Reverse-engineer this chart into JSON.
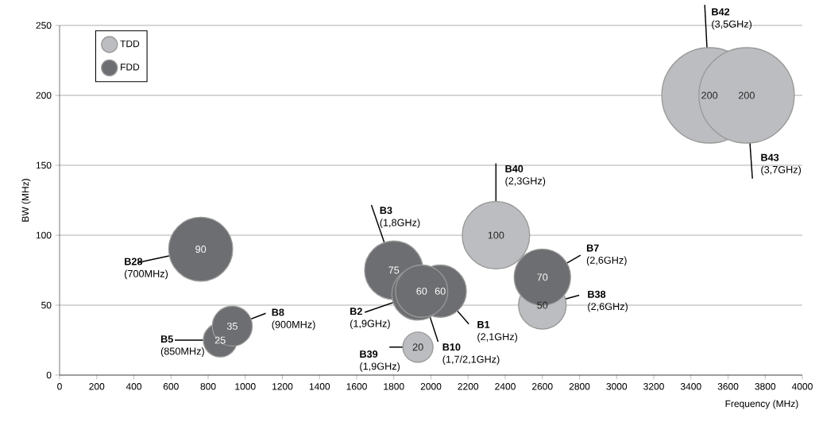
{
  "chart_data": {
    "type": "bubble",
    "xlabel": "Frequency (MHz)",
    "ylabel": "BW (MHz)",
    "xlim": [
      0,
      4000
    ],
    "xticks": [
      0,
      200,
      400,
      600,
      800,
      1000,
      1200,
      1400,
      1600,
      1800,
      2000,
      2200,
      2400,
      2600,
      2800,
      3000,
      3200,
      3400,
      3600,
      3800,
      4000
    ],
    "ylim": [
      0,
      250
    ],
    "yticks": [
      0,
      50,
      100,
      150,
      200,
      250
    ],
    "grid": "y",
    "legend": "top left",
    "series": [
      {
        "name": "TDD",
        "color": "#bcbdc0",
        "x": [
          1930,
          2350,
          2600,
          3500,
          3700
        ],
        "values": [
          20,
          100,
          50,
          200,
          200
        ],
        "sizes": [
          0.1,
          0.5,
          0.25,
          1,
          1
        ],
        "value_labels": [
          "20",
          "100",
          "50",
          "200",
          "200"
        ]
      },
      {
        "name": "FDD",
        "color": "#6d6e71",
        "x": [
          760,
          865,
          930,
          1800,
          2050,
          1930,
          1950,
          2600
        ],
        "values": [
          90,
          25,
          35,
          75,
          60,
          58,
          60,
          70
        ],
        "sizes": [
          0.45,
          0.125,
          0.175,
          0.375,
          0.3,
          0.3,
          0.3,
          0.35
        ],
        "value_labels": [
          "90",
          "25",
          "35",
          "75",
          "60",
          null,
          "60",
          "70"
        ]
      }
    ],
    "annotations": [
      {
        "text": "**B28** (700MHz)",
        "x": 760,
        "y": 90
      },
      {
        "text": "**B5** (850MHz)",
        "x": 865,
        "y": 25
      },
      {
        "text": "**B8** (900MHz)",
        "x": 930,
        "y": 35
      },
      {
        "text": "**B3** (1,8GHz)",
        "x": 1800,
        "y": 75
      },
      {
        "text": "**B2** (1,9GHz)",
        "x": 1930,
        "y": 58
      },
      {
        "text": "**B10** (1,7/2,1GHz)",
        "x": 1950,
        "y": 60
      },
      {
        "text": "**B1** (2,1GHz)",
        "x": 2050,
        "y": 60
      },
      {
        "text": "**B39** (1,9GHz)",
        "x": 1930,
        "y": 20
      },
      {
        "text": "**B40** (2,3GHz)",
        "x": 2350,
        "y": 100
      },
      {
        "text": "**B7** (2,6GHz)",
        "x": 2600,
        "y": 70
      },
      {
        "text": "**B38** (2,6GHz)",
        "x": 2600,
        "y": 50
      },
      {
        "text": "**B42** (3,5GHz)",
        "x": 3500,
        "y": 200
      },
      {
        "text": "**B43** (3,7GHz)",
        "x": 3700,
        "y": 200
      }
    ]
  }
}
